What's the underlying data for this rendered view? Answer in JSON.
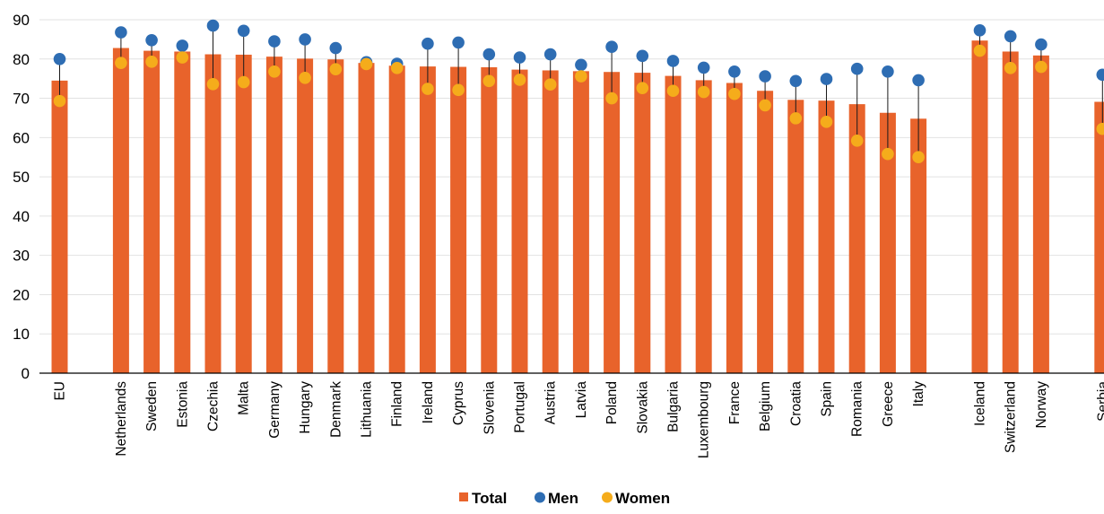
{
  "chart_data": {
    "type": "bar",
    "title": "",
    "xlabel": "",
    "ylabel": "",
    "ylim": [
      0,
      90
    ],
    "yticks": [
      0,
      10,
      20,
      30,
      40,
      50,
      60,
      70,
      80,
      90
    ],
    "grid": "horizontal",
    "legend_position": "bottom-center",
    "categories": [
      "EU",
      "",
      "Netherlands",
      "Sweden",
      "Estonia",
      "Czechia",
      "Malta",
      "Germany",
      "Hungary",
      "Denmark",
      "Lithuania",
      "Finland",
      "Ireland",
      "Cyprus",
      "Slovenia",
      "Portugal",
      "Austria",
      "Latvia",
      "Poland",
      "Slovakia",
      "Bulgaria",
      "Luxembourg",
      "France",
      "Belgium",
      "Croatia",
      "Spain",
      "Romania",
      "Greece",
      "Italy",
      "",
      "Iceland",
      "Switzerland",
      "Norway",
      "",
      "Serbia"
    ],
    "series": [
      {
        "name": "Total",
        "kind": "bar",
        "color": "#e8632b",
        "values": [
          74.5,
          null,
          82.8,
          82.1,
          81.9,
          81.2,
          81.1,
          80.6,
          80.1,
          79.9,
          79.0,
          78.3,
          78.1,
          78.0,
          77.9,
          77.3,
          77.1,
          76.9,
          76.7,
          76.5,
          75.7,
          74.6,
          73.9,
          71.9,
          69.6,
          69.4,
          68.5,
          66.3,
          64.8,
          null,
          84.7,
          81.9,
          80.9,
          null,
          69.1
        ]
      },
      {
        "name": "Men",
        "kind": "marker",
        "color": "#2e6db3",
        "values": [
          80.0,
          null,
          86.8,
          84.8,
          83.4,
          88.5,
          87.2,
          84.5,
          85.0,
          82.8,
          79.2,
          78.8,
          83.9,
          84.2,
          81.2,
          80.4,
          81.2,
          78.5,
          83.1,
          80.8,
          79.5,
          77.8,
          76.8,
          75.6,
          74.4,
          74.9,
          77.5,
          76.8,
          74.6,
          null,
          87.3,
          85.8,
          83.7,
          null,
          76.0
        ]
      },
      {
        "name": "Women",
        "kind": "marker",
        "color": "#f5ac1b",
        "values": [
          69.3,
          null,
          79.0,
          79.3,
          80.4,
          73.6,
          74.1,
          76.8,
          75.2,
          77.4,
          78.7,
          77.7,
          72.4,
          72.1,
          74.4,
          74.7,
          73.5,
          75.6,
          70.0,
          72.6,
          71.9,
          71.6,
          71.1,
          68.2,
          64.9,
          64.0,
          59.2,
          55.8,
          55.0,
          null,
          82.1,
          77.7,
          78.0,
          null,
          62.2
        ]
      }
    ]
  }
}
